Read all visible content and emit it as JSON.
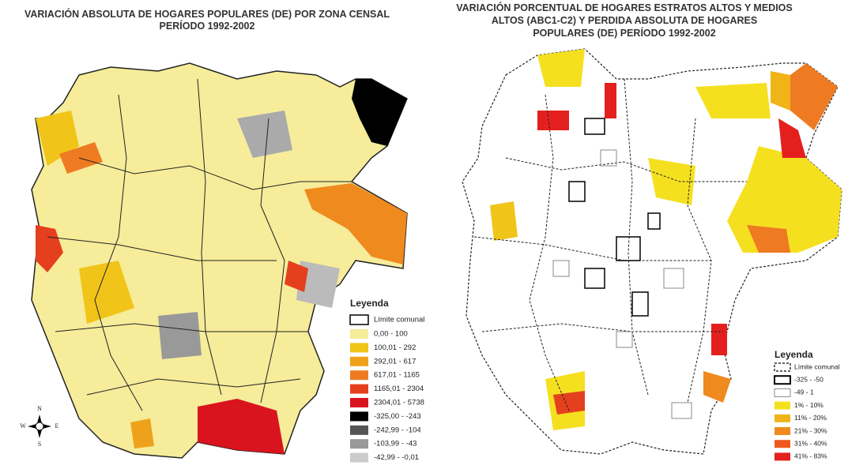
{
  "left_map": {
    "title": [
      "VARIACIÓN ABSOLUTA DE HOGARES POPULARES (DE) POR ZONA CENSAL",
      "PERÍODO 1992-2002"
    ],
    "legend": {
      "title": "Leyenda",
      "items": [
        "Límite comunal",
        "0,00 - 100",
        "100,01 - 292",
        "292,01 - 617",
        "617,01 - 1165",
        "1165,01 - 2304",
        "2304,01 - 5738",
        "-325,00 - -243",
        "-242,99 - -104",
        "-103,99 - -43",
        "-42,99 - -0,01"
      ]
    },
    "compass": {
      "north": "N",
      "south": "S",
      "east": "E",
      "west": "W"
    }
  },
  "right_map": {
    "title": [
      "VARIACIÓN PORCENTUAL DE HOGARES ESTRATOS ALTOS Y MEDIOS",
      "ALTOS  (ABC1-C2) Y PERDIDA ABSOLUTA DE HOGARES",
      "POPULARES (DE) PERÍODO 1992-2002"
    ],
    "legend": {
      "title": "Leyenda",
      "items": [
        "Límite comunal",
        "-325 - -50",
        "-49 - 1",
        "1% - 10%",
        "11% - 20%",
        "21% - 30%",
        "31% - 40%",
        "41% - 83%"
      ]
    }
  }
}
